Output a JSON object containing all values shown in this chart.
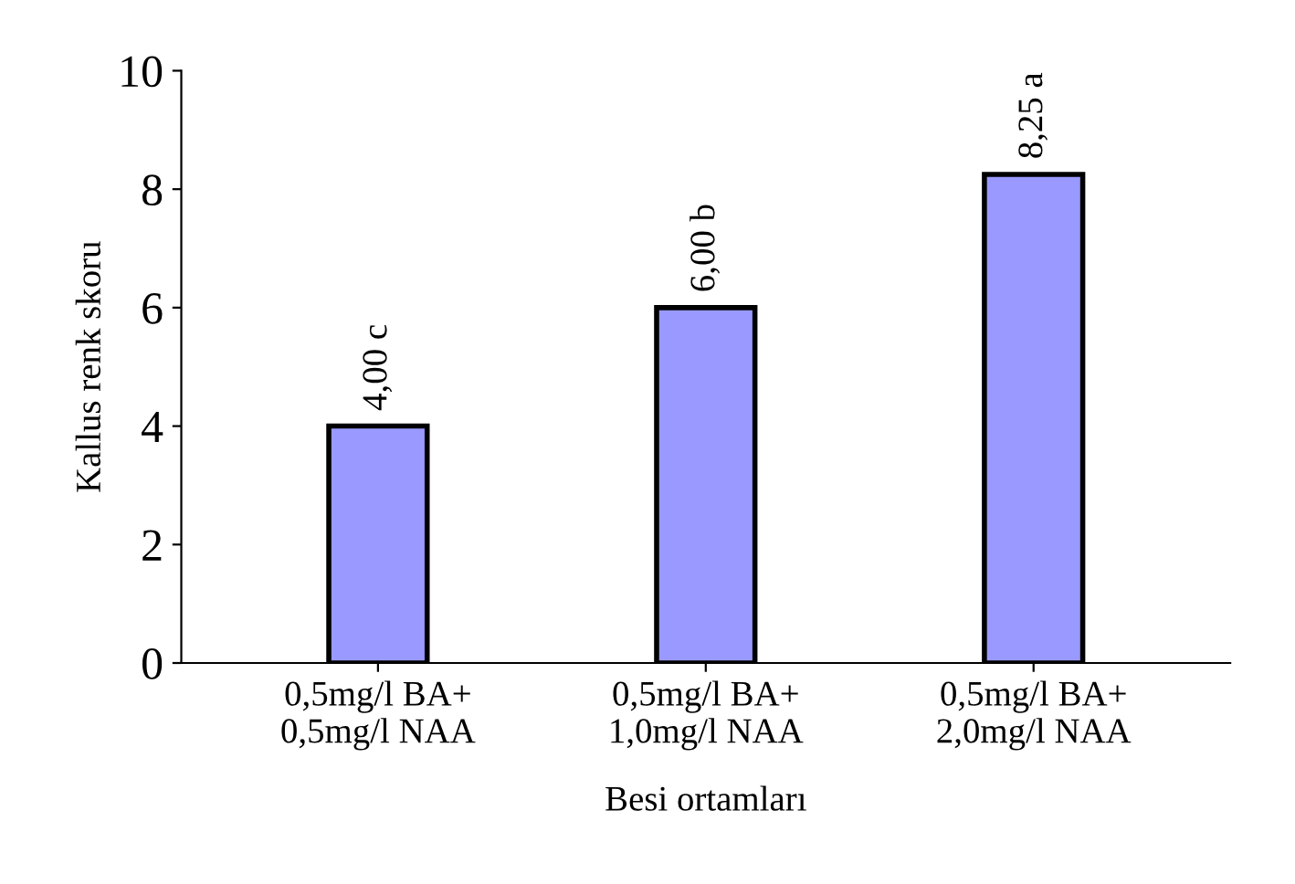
{
  "chart_data": {
    "type": "bar",
    "categories": [
      "0,5mg/l BA+\n0,5mg/l NAA",
      "0,5mg/l BA+\n1,0mg/l NAA",
      "0,5mg/l BA+\n2,0mg/l NAA"
    ],
    "values": [
      4.0,
      6.0,
      8.25
    ],
    "value_labels": [
      "4,00 c",
      "6,00 b",
      "8,25 a"
    ],
    "color": "#9999ff",
    "xlabel": "Besi ortamları",
    "ylabel": "Kallus renk skoru",
    "ylim": [
      0,
      10
    ],
    "yticks": [
      0,
      2,
      4,
      6,
      8,
      10
    ],
    "grid": false
  }
}
